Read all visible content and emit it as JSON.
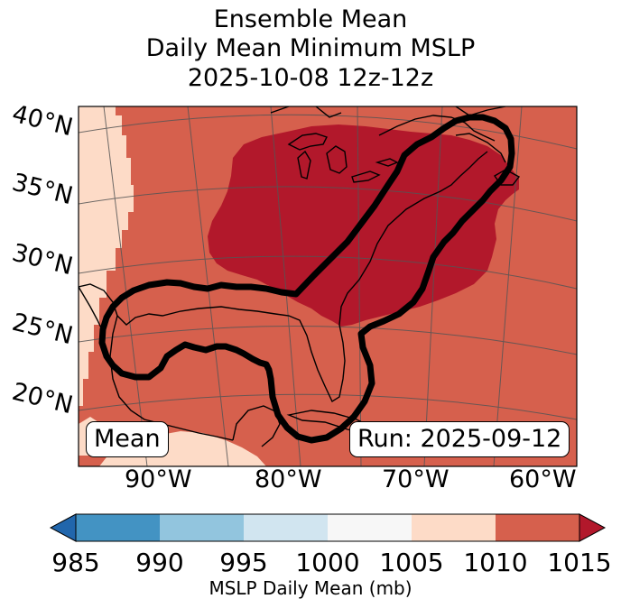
{
  "title": {
    "line1": "Ensemble Mean",
    "line2": "Daily Mean Minimum MSLP",
    "line3": "2025-10-08 12z-12z"
  },
  "map": {
    "lat_labels": [
      "40°N",
      "35°N",
      "30°N",
      "25°N",
      "20°N"
    ],
    "lon_labels": [
      "90°W",
      "80°W",
      "70°W",
      "60°W"
    ],
    "mean_label": "Mean",
    "run_label": "Run: 2025-09-12",
    "fill_colors": {
      "1005_1010": "#fddbc7",
      "1010_1015": "#d6604d",
      "above_1015": "#b2182b"
    },
    "contour_color": "#000000"
  },
  "colorbar": {
    "ticks": [
      "985",
      "990",
      "995",
      "1000",
      "1005",
      "1010",
      "1015"
    ],
    "colors": [
      "#2166ac",
      "#4393c3",
      "#92c5de",
      "#d1e5f0",
      "#f7f7f7",
      "#fddbc7",
      "#d6604d",
      "#b2182b"
    ],
    "label": "MSLP Daily Mean (mb)"
  }
}
